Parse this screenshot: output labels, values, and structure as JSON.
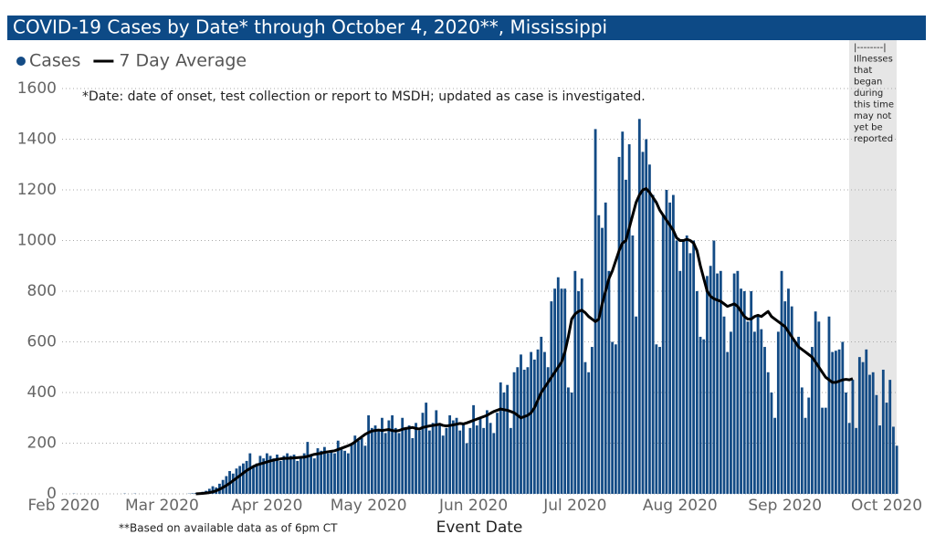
{
  "chart_data": {
    "type": "bar",
    "title": "COVID-19 Cases by Date* through October 4, 2020**, Mississippi",
    "note": "*Date: date of onset, test collection or report to MSDH; updated as case is investigated.",
    "footnote": "**Based on available data as of 6pm CT",
    "x_label": "Event Date",
    "annotation": [
      "|--------|",
      "Illnesses",
      "that",
      "began",
      "during",
      "this time",
      "may not",
      "yet be",
      "reported"
    ],
    "ylim": [
      0,
      1600
    ],
    "yticks": [
      0,
      200,
      400,
      600,
      800,
      1000,
      1200,
      1400,
      1600
    ],
    "grid": true,
    "legend": "top-left",
    "categories": [
      "Feb 2020",
      null,
      null,
      null,
      null,
      null,
      null,
      null,
      null,
      null,
      null,
      null,
      null,
      null,
      null,
      null,
      null,
      null,
      null,
      null,
      null,
      null,
      null,
      null,
      null,
      null,
      null,
      null,
      null,
      "Mar 2020",
      null,
      null,
      null,
      null,
      null,
      null,
      null,
      null,
      null,
      null,
      null,
      null,
      null,
      null,
      null,
      null,
      null,
      null,
      null,
      null,
      null,
      null,
      null,
      null,
      null,
      null,
      null,
      null,
      null,
      null,
      "Apr 2020",
      null,
      null,
      null,
      null,
      null,
      null,
      null,
      null,
      null,
      null,
      null,
      null,
      null,
      null,
      null,
      null,
      null,
      null,
      null,
      null,
      null,
      null,
      null,
      null,
      null,
      null,
      null,
      null,
      null,
      "May 2020",
      null,
      null,
      null,
      null,
      null,
      null,
      null,
      null,
      null,
      null,
      null,
      null,
      null,
      null,
      null,
      null,
      null,
      null,
      null,
      null,
      null,
      null,
      null,
      null,
      null,
      null,
      null,
      null,
      null,
      null,
      "Jun 2020",
      null,
      null,
      null,
      null,
      null,
      null,
      null,
      null,
      null,
      null,
      null,
      null,
      null,
      null,
      null,
      null,
      null,
      null,
      null,
      null,
      null,
      null,
      null,
      null,
      null,
      null,
      null,
      null,
      null,
      "Jul 2020",
      null,
      null,
      null,
      null,
      null,
      null,
      null,
      null,
      null,
      null,
      null,
      null,
      null,
      null,
      null,
      null,
      null,
      null,
      null,
      null,
      null,
      null,
      null,
      null,
      null,
      null,
      null,
      null,
      null,
      null,
      "Aug 2020",
      null,
      null,
      null,
      null,
      null,
      null,
      null,
      null,
      null,
      null,
      null,
      null,
      null,
      null,
      null,
      null,
      null,
      null,
      null,
      null,
      null,
      null,
      null,
      null,
      null,
      null,
      null,
      null,
      null,
      null,
      "Sep 2020",
      null,
      null,
      null,
      null,
      null,
      null,
      null,
      null,
      null,
      null,
      null,
      null,
      null,
      null,
      null,
      null,
      null,
      null,
      null,
      null,
      null,
      null,
      null,
      null,
      null,
      null,
      null,
      null,
      null,
      "Oct 2020",
      null,
      null,
      null
    ],
    "series": [
      {
        "name": "Cases",
        "color": "#134b85",
        "values": [
          0,
          0,
          0,
          1,
          0,
          0,
          0,
          0,
          0,
          0,
          0,
          0,
          0,
          0,
          0,
          0,
          0,
          0,
          1,
          0,
          0,
          1,
          0,
          0,
          0,
          0,
          0,
          0,
          0,
          0,
          0,
          0,
          0,
          0,
          0,
          0,
          0,
          1,
          2,
          3,
          5,
          8,
          12,
          20,
          30,
          25,
          40,
          55,
          70,
          90,
          80,
          100,
          110,
          120,
          130,
          160,
          110,
          120,
          150,
          140,
          160,
          150,
          140,
          155,
          130,
          150,
          160,
          150,
          155,
          130,
          140,
          160,
          205,
          150,
          140,
          180,
          170,
          185,
          160,
          170,
          160,
          210,
          175,
          170,
          160,
          200,
          230,
          210,
          220,
          190,
          310,
          260,
          270,
          250,
          300,
          240,
          290,
          310,
          260,
          240,
          300,
          260,
          270,
          220,
          280,
          250,
          320,
          360,
          250,
          280,
          330,
          270,
          230,
          260,
          310,
          290,
          300,
          250,
          280,
          200,
          260,
          350,
          270,
          300,
          260,
          330,
          280,
          240,
          320,
          440,
          400,
          430,
          260,
          480,
          500,
          550,
          490,
          500,
          560,
          530,
          570,
          620,
          560,
          500,
          760,
          810,
          855,
          810,
          810,
          420,
          400,
          880,
          800,
          850,
          520,
          480,
          580,
          1440,
          1100,
          1050,
          1150,
          880,
          600,
          590,
          1330,
          1430,
          1240,
          1380,
          1020,
          700,
          1480,
          1350,
          1400,
          1300,
          1180,
          590,
          580,
          1100,
          1200,
          1150,
          1180,
          1000,
          880,
          1000,
          1020,
          950,
          1000,
          800,
          620,
          610,
          860,
          900,
          1000,
          870,
          880,
          700,
          560,
          640,
          870,
          880,
          810,
          800,
          680,
          800,
          640,
          700,
          650,
          580,
          480,
          400,
          300,
          640,
          880,
          760,
          810,
          740,
          600,
          620,
          420,
          300,
          380,
          580,
          720,
          680,
          340,
          340,
          700,
          560,
          565,
          570,
          600,
          400,
          280,
          450,
          260,
          540,
          520,
          570,
          470,
          480,
          390,
          270,
          490,
          360,
          450,
          265,
          190
        ]
      },
      {
        "name": "7 Day Average",
        "type": "line",
        "color": "#000000",
        "values": [
          null,
          null,
          null,
          null,
          null,
          null,
          null,
          null,
          null,
          null,
          null,
          null,
          null,
          null,
          null,
          null,
          null,
          null,
          null,
          null,
          null,
          null,
          null,
          null,
          null,
          null,
          null,
          null,
          null,
          null,
          null,
          null,
          null,
          null,
          null,
          null,
          null,
          null,
          null,
          0,
          1,
          2,
          3,
          5,
          8,
          12,
          18,
          25,
          33,
          42,
          52,
          62,
          72,
          82,
          92,
          100,
          108,
          114,
          118,
          122,
          126,
          130,
          133,
          136,
          138,
          140,
          140,
          141,
          142,
          143,
          144,
          145,
          148,
          152,
          156,
          158,
          160,
          164,
          166,
          168,
          170,
          175,
          180,
          185,
          190,
          196,
          205,
          215,
          225,
          235,
          242,
          248,
          250,
          252,
          250,
          252,
          254,
          250,
          248,
          250,
          255,
          258,
          260,
          262,
          258,
          256,
          262,
          265,
          268,
          270,
          272,
          275,
          270,
          268,
          270,
          272,
          275,
          278,
          276,
          280,
          285,
          290,
          295,
          300,
          305,
          310,
          318,
          325,
          330,
          335,
          332,
          330,
          325,
          320,
          310,
          300,
          305,
          310,
          320,
          340,
          370,
          400,
          420,
          440,
          460,
          480,
          500,
          520,
          560,
          620,
          690,
          710,
          720,
          725,
          715,
          700,
          690,
          680,
          690,
          750,
          800,
          850,
          880,
          920,
          960,
          990,
          1000,
          1050,
          1100,
          1150,
          1180,
          1200,
          1205,
          1190,
          1170,
          1150,
          1120,
          1100,
          1080,
          1060,
          1040,
          1010,
          1000,
          1000,
          1005,
          1000,
          990,
          960,
          900,
          850,
          800,
          780,
          770,
          765,
          760,
          750,
          740,
          745,
          750,
          740,
          720,
          700,
          690,
          690,
          700,
          705,
          700,
          710,
          720,
          700,
          690,
          680,
          670,
          660,
          640,
          620,
          600,
          580,
          570,
          560,
          550,
          540,
          520,
          500,
          480,
          460,
          450,
          440,
          440,
          445,
          450,
          452,
          450,
          455,
          null,
          null,
          null,
          null,
          null,
          null,
          null,
          null,
          null,
          null,
          null,
          null,
          null
        ]
      }
    ]
  }
}
